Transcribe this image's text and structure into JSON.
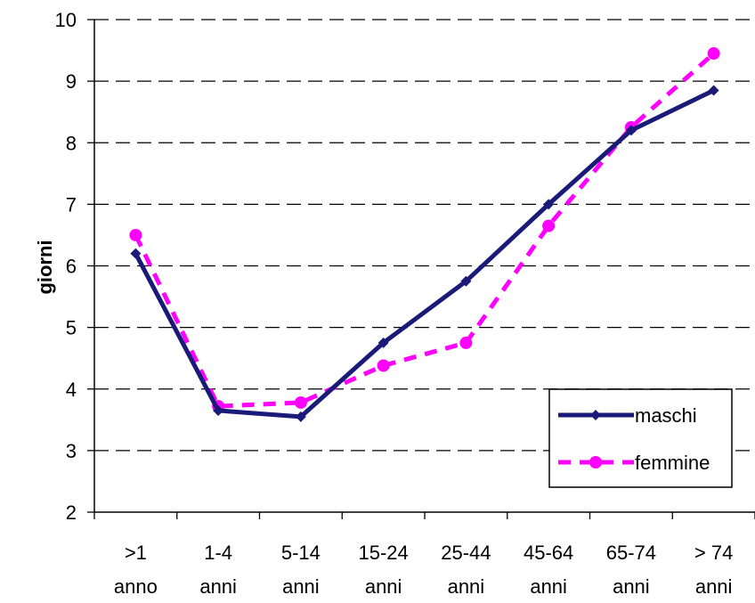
{
  "chart_data": {
    "type": "line",
    "title": "",
    "xlabel": "",
    "ylabel": "giorni",
    "ylim": [
      2,
      10
    ],
    "yticks": [
      2,
      3,
      4,
      5,
      6,
      7,
      8,
      9,
      10
    ],
    "categories": [
      [
        ">1",
        "anno"
      ],
      [
        "1-4",
        "anni"
      ],
      [
        "5-14",
        "anni"
      ],
      [
        "15-24",
        "anni"
      ],
      [
        "25-44",
        "anni"
      ],
      [
        "45-64",
        "anni"
      ],
      [
        "65-74",
        "anni"
      ],
      [
        "> 74",
        "anni"
      ]
    ],
    "series": [
      {
        "name": "maschi",
        "values": [
          6.2,
          3.65,
          3.55,
          4.75,
          5.75,
          7.0,
          8.2,
          8.85
        ],
        "color": "#1a1a78",
        "style": "solid-diamond"
      },
      {
        "name": "femmine",
        "values": [
          6.5,
          3.72,
          3.78,
          4.38,
          4.75,
          6.65,
          8.25,
          9.45
        ],
        "color": "#ff00ff",
        "style": "dashed-circle"
      }
    ],
    "grid": "horizontal-dashed",
    "legend": "bottom-right"
  }
}
